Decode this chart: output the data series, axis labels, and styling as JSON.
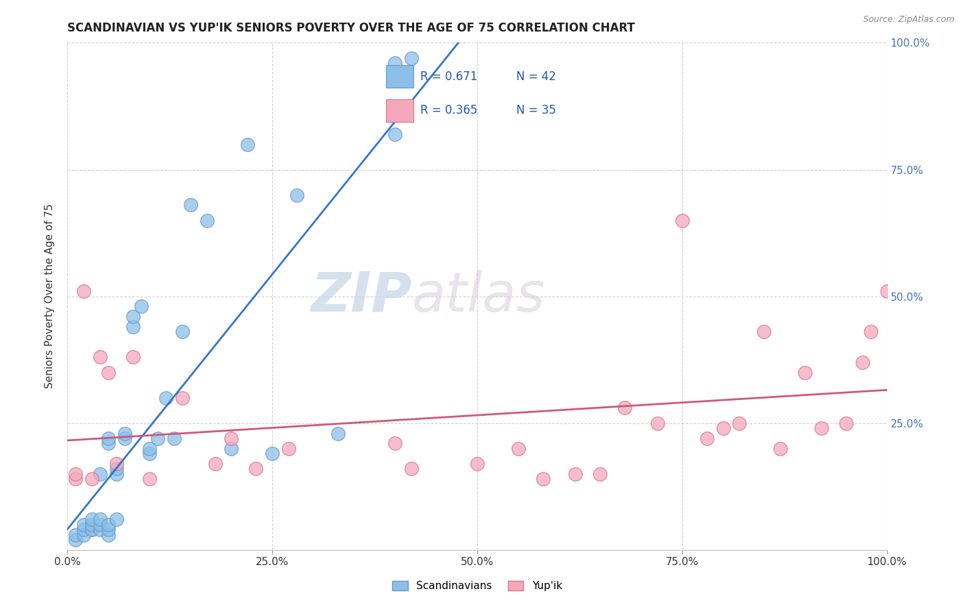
{
  "title": "SCANDINAVIAN VS YUP'IK SENIORS POVERTY OVER THE AGE OF 75 CORRELATION CHART",
  "source": "Source: ZipAtlas.com",
  "ylabel": "Seniors Poverty Over the Age of 75",
  "xlim": [
    0.0,
    1.0
  ],
  "ylim": [
    0.0,
    1.0
  ],
  "xtick_labels": [
    "0.0%",
    "",
    "25.0%",
    "",
    "50.0%",
    "",
    "75.0%",
    "",
    "100.0%"
  ],
  "xtick_vals": [
    0.0,
    0.125,
    0.25,
    0.375,
    0.5,
    0.625,
    0.75,
    0.875,
    1.0
  ],
  "ytick_labels": [
    "25.0%",
    "50.0%",
    "75.0%",
    "100.0%"
  ],
  "ytick_vals": [
    0.25,
    0.5,
    0.75,
    1.0
  ],
  "R_scand": 0.671,
  "N_scand": 42,
  "R_yupik": 0.365,
  "N_yupik": 35,
  "scand_color": "#8bbfe8",
  "yupik_color": "#f4a8bc",
  "scand_edge_color": "#6699cc",
  "yupik_edge_color": "#e07090",
  "scand_line_color": "#3575c8",
  "yupik_line_color": "#d05878",
  "watermark_zip": "ZIP",
  "watermark_atlas": "atlas",
  "background_color": "#ffffff",
  "scand_x": [
    0.01,
    0.01,
    0.02,
    0.02,
    0.02,
    0.03,
    0.03,
    0.03,
    0.03,
    0.04,
    0.04,
    0.04,
    0.04,
    0.05,
    0.05,
    0.05,
    0.05,
    0.05,
    0.06,
    0.06,
    0.06,
    0.07,
    0.07,
    0.08,
    0.08,
    0.09,
    0.1,
    0.1,
    0.11,
    0.12,
    0.13,
    0.14,
    0.15,
    0.17,
    0.2,
    0.22,
    0.25,
    0.28,
    0.33,
    0.4,
    0.4,
    0.42
  ],
  "scand_y": [
    0.02,
    0.03,
    0.03,
    0.04,
    0.05,
    0.04,
    0.04,
    0.05,
    0.06,
    0.04,
    0.05,
    0.06,
    0.15,
    0.03,
    0.04,
    0.05,
    0.21,
    0.22,
    0.06,
    0.15,
    0.16,
    0.22,
    0.23,
    0.44,
    0.46,
    0.48,
    0.19,
    0.2,
    0.22,
    0.3,
    0.22,
    0.43,
    0.68,
    0.65,
    0.2,
    0.8,
    0.19,
    0.7,
    0.23,
    0.82,
    0.96,
    0.97
  ],
  "yupik_x": [
    0.01,
    0.01,
    0.02,
    0.03,
    0.04,
    0.05,
    0.06,
    0.08,
    0.1,
    0.14,
    0.18,
    0.2,
    0.23,
    0.27,
    0.4,
    0.42,
    0.5,
    0.55,
    0.58,
    0.62,
    0.65,
    0.68,
    0.72,
    0.75,
    0.78,
    0.8,
    0.82,
    0.85,
    0.87,
    0.9,
    0.92,
    0.95,
    0.97,
    0.98,
    1.0
  ],
  "yupik_y": [
    0.14,
    0.15,
    0.51,
    0.14,
    0.38,
    0.35,
    0.17,
    0.38,
    0.14,
    0.3,
    0.17,
    0.22,
    0.16,
    0.2,
    0.21,
    0.16,
    0.17,
    0.2,
    0.14,
    0.15,
    0.15,
    0.28,
    0.25,
    0.65,
    0.22,
    0.24,
    0.25,
    0.43,
    0.2,
    0.35,
    0.24,
    0.25,
    0.37,
    0.43,
    0.51
  ]
}
